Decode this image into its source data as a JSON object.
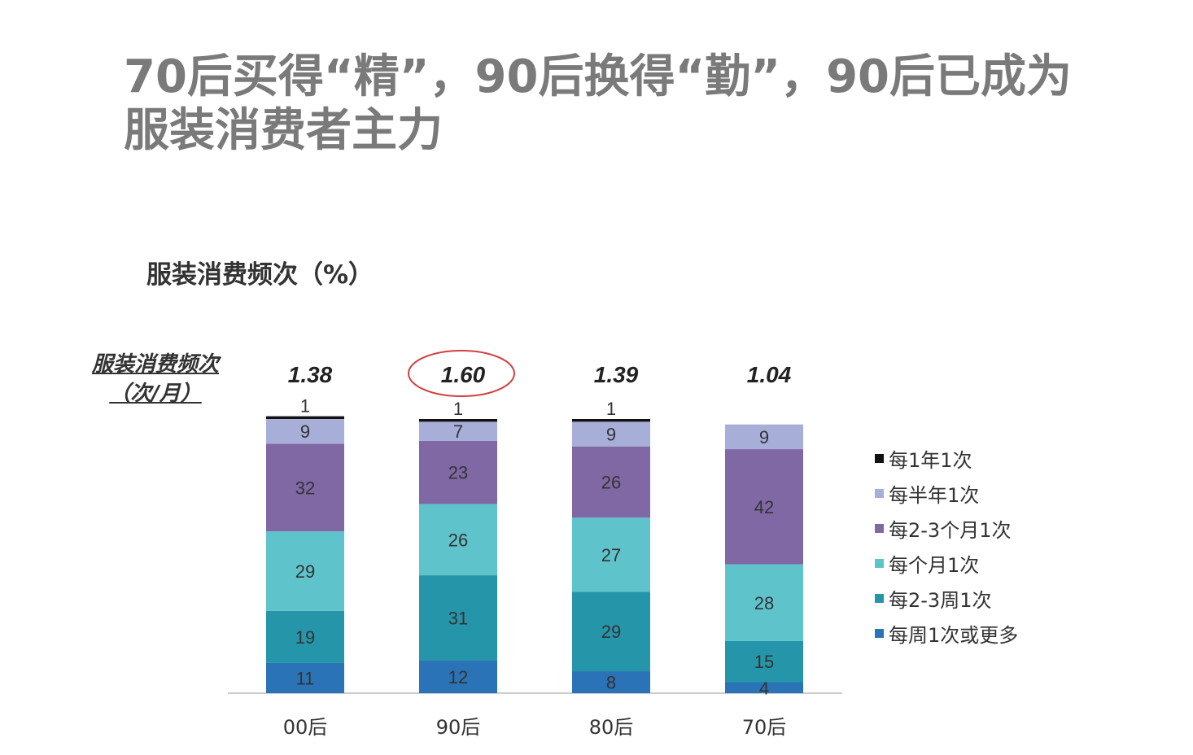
{
  "title": "70后买得“精”，90后换得“勤”，90后已成为服装消费者主力",
  "chart_data": {
    "type": "bar",
    "stacked": true,
    "title": "服装消费频次（%）",
    "ylabel": "服装消费频次（次/月）",
    "categories": [
      "00后",
      "90后",
      "80后",
      "70后"
    ],
    "frequency_per_month": [
      "1.38",
      "1.60",
      "1.39",
      "1.04"
    ],
    "highlighted": "90后",
    "series": [
      {
        "name": "每周1次或更多",
        "color": "#2a73b6",
        "values": [
          11,
          12,
          8,
          4
        ]
      },
      {
        "name": "每2-3周1次",
        "color": "#2596a9",
        "values": [
          19,
          31,
          29,
          15
        ]
      },
      {
        "name": "每个月1次",
        "color": "#5fc3cc",
        "values": [
          29,
          26,
          27,
          28
        ]
      },
      {
        "name": "每2-3个月1次",
        "color": "#8068a5",
        "values": [
          32,
          23,
          26,
          42
        ]
      },
      {
        "name": "每半年1次",
        "color": "#a7afd9",
        "values": [
          9,
          7,
          9,
          9
        ]
      },
      {
        "name": "每1年1次",
        "color": "#111111",
        "values": [
          1,
          1,
          1,
          null
        ]
      }
    ],
    "legend_position": "right",
    "grid": false
  }
}
